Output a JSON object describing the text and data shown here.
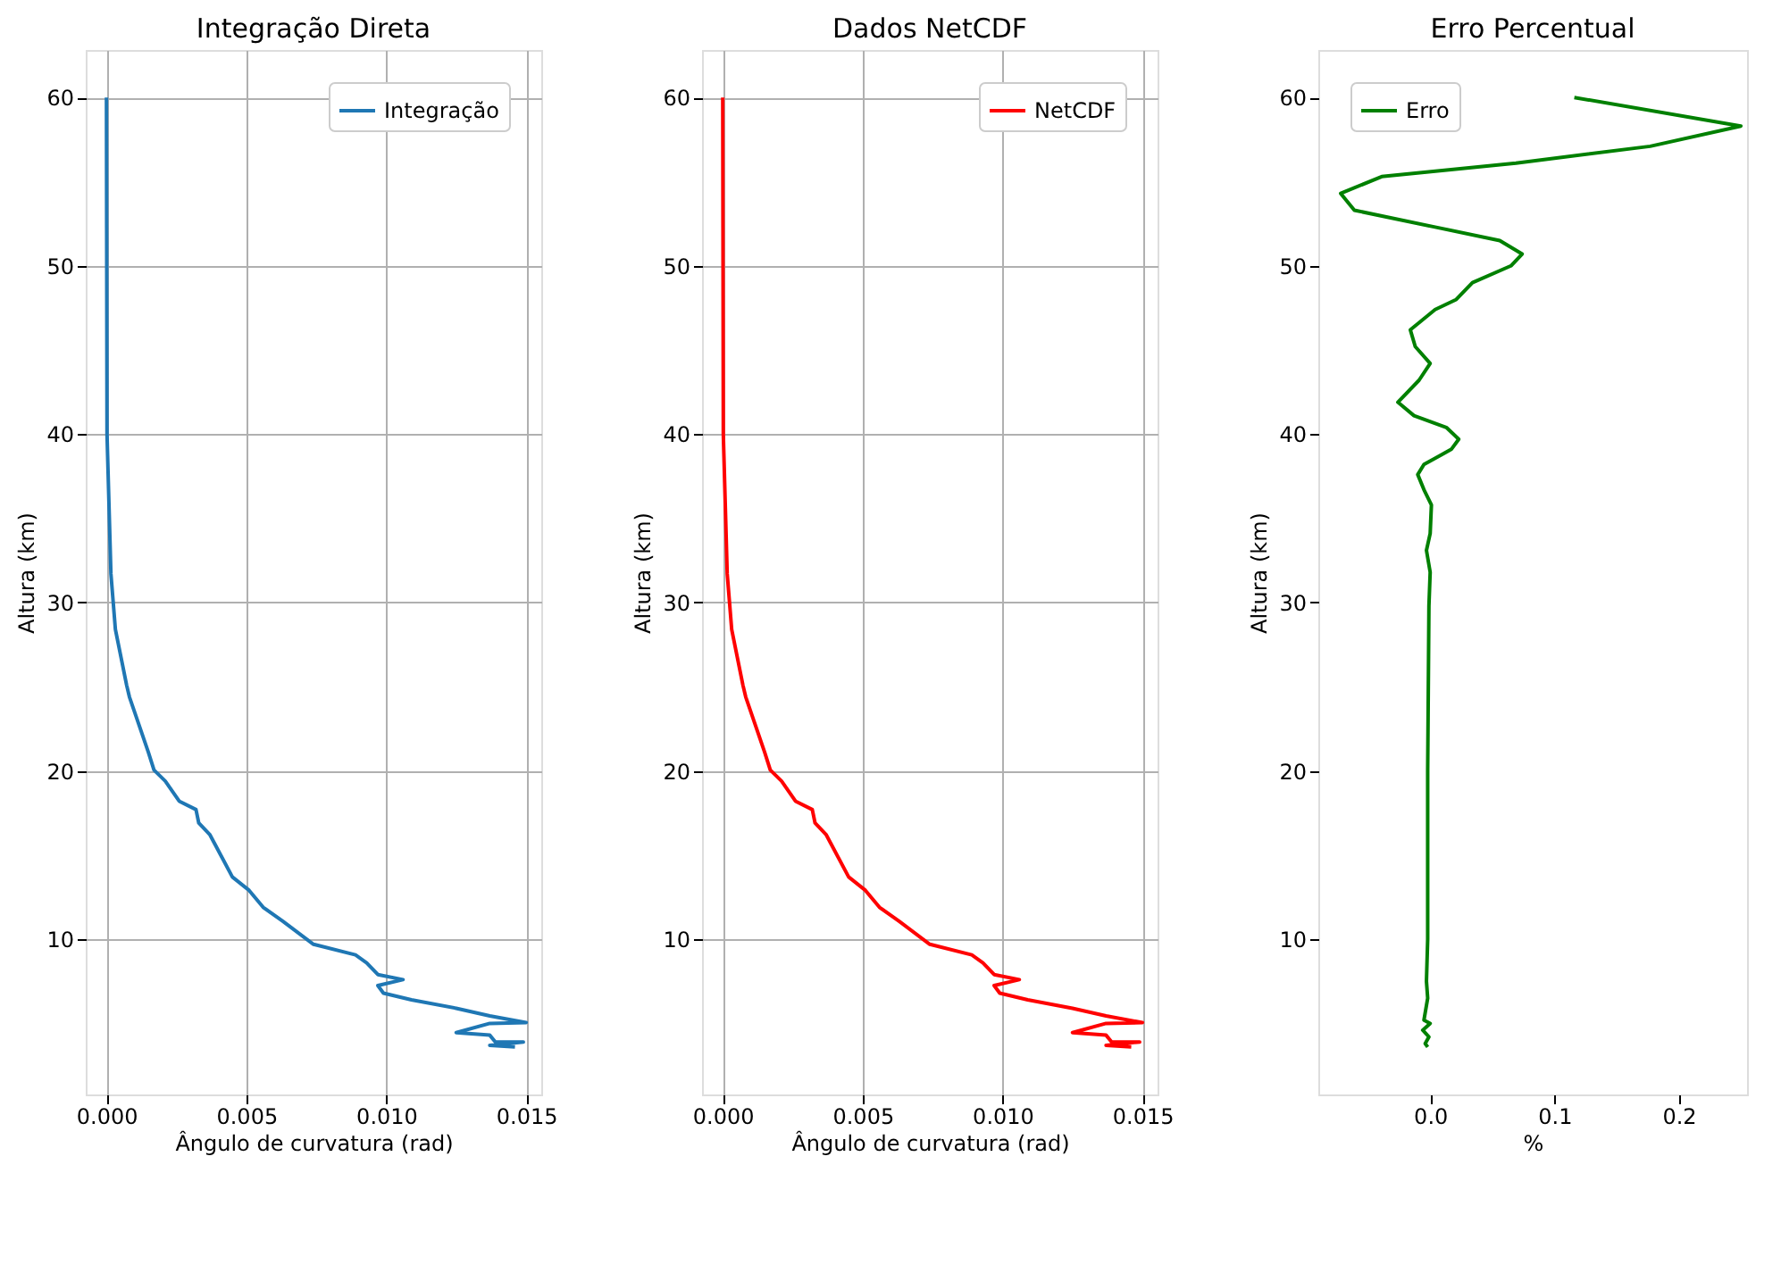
{
  "chart_data": [
    {
      "type": "line",
      "title": "Integração Direta",
      "xlabel": "Ângulo de curvatura (rad)",
      "ylabel": "Altura (km)",
      "xlim": [
        -0.00074,
        0.01554
      ],
      "xticks": [
        {
          "value": 0,
          "label": "0.000"
        },
        {
          "value": 0.005,
          "label": "0.005"
        },
        {
          "value": 0.01,
          "label": "0.010"
        },
        {
          "value": 0.015,
          "label": "0.015"
        }
      ],
      "ylim": [
        0.78,
        62.82
      ],
      "yticks": [
        10,
        20,
        30,
        40,
        50,
        60
      ],
      "grid": true,
      "legend": "top right",
      "series": [
        {
          "name": "Integração",
          "color": "#1f77b4",
          "x": [
            0,
            2e-05,
            0.00016,
            0.00032,
            0.00072,
            0.00082,
            0.0015,
            0.0017,
            0.0021,
            0.0026,
            0.0032,
            0.0033,
            0.0037,
            0.0045,
            0.0051,
            0.0056,
            0.0063,
            0.0074,
            0.0089,
            0.0093,
            0.0097,
            0.0106,
            0.0097,
            0.0099,
            0.0109,
            0.0125,
            0.0137,
            0.015,
            0.0137,
            0.0125,
            0.0137,
            0.0139,
            0.0149,
            0.0137,
            0.0146
          ],
          "values": [
            60,
            40,
            31.7,
            28.4,
            25.1,
            24.4,
            21.1,
            20.05,
            19.4,
            18.2,
            17.7,
            16.9,
            16.2,
            13.7,
            12.9,
            11.9,
            11.07,
            9.7,
            9.07,
            8.6,
            7.9,
            7.6,
            7.25,
            6.8,
            6.4,
            5.9,
            5.45,
            5.05,
            5.0,
            4.45,
            4.3,
            3.9,
            3.9,
            3.7,
            3.6
          ]
        }
      ]
    },
    {
      "type": "line",
      "title": "Dados NetCDF",
      "xlabel": "Ângulo de curvatura (rad)",
      "ylabel": "Altura (km)",
      "xlim": [
        -0.00074,
        0.01554
      ],
      "xticks": [
        {
          "value": 0,
          "label": "0.000"
        },
        {
          "value": 0.005,
          "label": "0.005"
        },
        {
          "value": 0.01,
          "label": "0.010"
        },
        {
          "value": 0.015,
          "label": "0.015"
        }
      ],
      "ylim": [
        0.78,
        62.82
      ],
      "yticks": [
        10,
        20,
        30,
        40,
        50,
        60
      ],
      "grid": true,
      "legend": "top right",
      "series": [
        {
          "name": "NetCDF",
          "color": "#ff0000",
          "x": [
            0,
            2e-05,
            0.00016,
            0.00032,
            0.00072,
            0.00082,
            0.0015,
            0.0017,
            0.0021,
            0.0026,
            0.0032,
            0.0033,
            0.0037,
            0.0045,
            0.0051,
            0.0056,
            0.0063,
            0.0074,
            0.0089,
            0.0093,
            0.0097,
            0.0106,
            0.0097,
            0.0099,
            0.0109,
            0.0125,
            0.0137,
            0.015,
            0.0137,
            0.0125,
            0.0137,
            0.0139,
            0.0149,
            0.0137,
            0.0146
          ],
          "values": [
            60,
            40,
            31.7,
            28.4,
            25.1,
            24.4,
            21.1,
            20.05,
            19.4,
            18.2,
            17.7,
            16.9,
            16.2,
            13.7,
            12.9,
            11.9,
            11.07,
            9.7,
            9.07,
            8.6,
            7.9,
            7.6,
            7.25,
            6.8,
            6.4,
            5.9,
            5.45,
            5.05,
            5.0,
            4.45,
            4.3,
            3.9,
            3.9,
            3.7,
            3.6
          ]
        }
      ]
    },
    {
      "type": "line",
      "title": "Erro Percentual",
      "xlabel": "%",
      "ylabel": "Altura (km)",
      "xlim": [
        -0.09,
        0.255
      ],
      "xticks": [
        {
          "value": 0,
          "label": "0.0"
        },
        {
          "value": 0.1,
          "label": "0.1"
        },
        {
          "value": 0.2,
          "label": "0.2"
        }
      ],
      "ylim": [
        0.78,
        62.82
      ],
      "yticks": [
        10,
        20,
        30,
        40,
        50,
        60
      ],
      "legend": "top left",
      "series": [
        {
          "name": "Erro",
          "color": "#008000",
          "x": [
            0.116,
            0.25,
            0.177,
            0.069,
            -0.039,
            -0.072,
            -0.061,
            0.004,
            0.056,
            0.074,
            0.065,
            0.034,
            0.021,
            0.004,
            -0.016,
            -0.012,
            0,
            -0.009,
            -0.026,
            -0.013,
            0.013,
            0.023,
            0.017,
            -0.005,
            -0.01,
            -0.005,
            0.001,
            0,
            -0.003,
            0,
            -0.001,
            -0.002,
            -0.002,
            -0.003,
            -0.002,
            -0.005,
            0,
            -0.006,
            -0.001,
            -0.004,
            -0.002
          ],
          "values": [
            60,
            58.3,
            57.1,
            56.1,
            55.3,
            54.3,
            53.3,
            52.3,
            51.5,
            50.7,
            50,
            49,
            48,
            47.4,
            46.2,
            45.2,
            44.2,
            43.2,
            41.9,
            41.1,
            40.4,
            39.7,
            39.1,
            38.2,
            37.6,
            36.7,
            35.8,
            34.1,
            33.1,
            31.8,
            29.8,
            20,
            10,
            7.5,
            6.5,
            5.2,
            5.0,
            4.6,
            4.2,
            3.8,
            3.6
          ]
        }
      ]
    }
  ]
}
